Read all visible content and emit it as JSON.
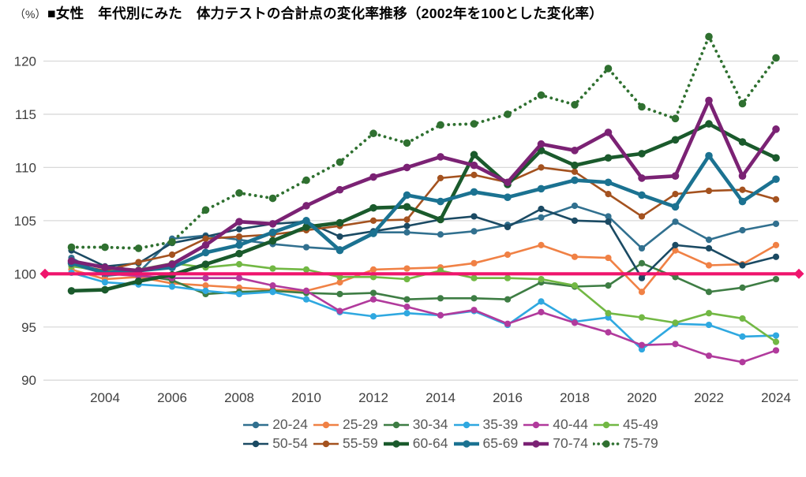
{
  "header": {
    "unit_label": "（%）",
    "title": "■女性　年代別にみた　体力テストの合計点の変化率推移（2002年を100とした変化率）"
  },
  "chart_data": {
    "type": "line",
    "title": "女性 年代別にみた 体力テストの合計点の変化率推移（2002年を100とした変化率）",
    "x_years": [
      2003,
      2004,
      2005,
      2006,
      2007,
      2008,
      2009,
      2010,
      2011,
      2012,
      2013,
      2014,
      2015,
      2016,
      2017,
      2018,
      2019,
      2020,
      2021,
      2022,
      2023,
      2024
    ],
    "x_tick_labels": [
      "2004",
      "2006",
      "2008",
      "2010",
      "2012",
      "2014",
      "2016",
      "2018",
      "2020",
      "2022",
      "2024"
    ],
    "y_ticks": [
      90,
      95,
      100,
      105,
      110,
      115,
      120
    ],
    "ylim": [
      88.8,
      122.8
    ],
    "grid": true,
    "legend_position": "bottom",
    "baseline": {
      "value": 100,
      "color": "#ef156d",
      "marker": "diamond"
    },
    "series": [
      {
        "name": "20-24",
        "color": "#31708f",
        "style": "solid",
        "emphasis": false,
        "values": [
          101.5,
          99.8,
          100.1,
          103.3,
          103.6,
          103.2,
          102.8,
          102.5,
          102.3,
          103.9,
          103.9,
          103.7,
          104.0,
          104.6,
          105.3,
          106.4,
          105.4,
          102.4,
          104.9,
          103.2,
          104.1,
          104.7
        ]
      },
      {
        "name": "25-29",
        "color": "#f08145",
        "style": "solid",
        "emphasis": false,
        "values": [
          100.4,
          99.5,
          99.7,
          99.1,
          98.9,
          98.7,
          98.5,
          98.4,
          99.2,
          100.4,
          100.5,
          100.6,
          101.0,
          101.8,
          102.7,
          101.6,
          101.5,
          98.3,
          102.2,
          100.8,
          100.9,
          102.7
        ]
      },
      {
        "name": "30-34",
        "color": "#3e7d44",
        "style": "solid",
        "emphasis": false,
        "values": [
          100.8,
          100.1,
          99.9,
          99.4,
          98.1,
          98.3,
          98.4,
          98.2,
          98.1,
          98.2,
          97.6,
          97.7,
          97.7,
          97.6,
          99.2,
          98.8,
          98.9,
          101.0,
          99.7,
          98.3,
          98.7,
          99.5
        ]
      },
      {
        "name": "35-39",
        "color": "#2fa8e0",
        "style": "solid",
        "emphasis": false,
        "values": [
          100.1,
          99.2,
          99.0,
          98.8,
          98.4,
          98.1,
          98.3,
          97.6,
          96.4,
          96.0,
          96.3,
          96.1,
          96.5,
          95.2,
          97.4,
          95.5,
          95.9,
          92.9,
          95.3,
          95.2,
          94.1,
          94.2
        ]
      },
      {
        "name": "40-44",
        "color": "#b13a9c",
        "style": "solid",
        "emphasis": false,
        "values": [
          100.9,
          100.0,
          99.8,
          99.6,
          99.6,
          99.6,
          98.9,
          98.4,
          96.5,
          97.6,
          96.9,
          96.1,
          96.6,
          95.3,
          96.4,
          95.4,
          94.5,
          93.3,
          93.4,
          92.3,
          91.7,
          92.8
        ]
      },
      {
        "name": "45-49",
        "color": "#72b844",
        "style": "solid",
        "emphasis": false,
        "values": [
          100.7,
          100.3,
          100.4,
          101.0,
          100.6,
          100.9,
          100.5,
          100.4,
          99.7,
          99.7,
          99.5,
          100.3,
          99.6,
          99.6,
          99.5,
          98.9,
          96.3,
          95.9,
          95.4,
          96.3,
          95.8,
          93.6
        ]
      },
      {
        "name": "50-54",
        "color": "#1b4a63",
        "style": "solid",
        "emphasis": false,
        "values": [
          102.2,
          100.7,
          101.0,
          102.9,
          103.5,
          104.2,
          104.7,
          104.9,
          103.5,
          104.0,
          104.5,
          105.1,
          105.4,
          104.4,
          106.1,
          105.0,
          104.9,
          99.6,
          102.7,
          102.4,
          100.8,
          101.6
        ]
      },
      {
        "name": "55-59",
        "color": "#a4521f",
        "style": "solid",
        "emphasis": false,
        "values": [
          100.9,
          100.3,
          101.1,
          101.8,
          103.3,
          103.5,
          103.7,
          104.1,
          104.5,
          105.0,
          105.1,
          109.0,
          109.3,
          108.6,
          110.0,
          109.6,
          107.5,
          105.4,
          107.5,
          107.8,
          107.9,
          107.0
        ]
      },
      {
        "name": "60-64",
        "color": "#1a5a2c",
        "style": "solid",
        "emphasis": true,
        "values": [
          98.4,
          98.5,
          99.3,
          99.9,
          100.9,
          101.9,
          103.1,
          104.4,
          104.8,
          106.2,
          106.3,
          105.1,
          111.2,
          108.4,
          111.6,
          110.2,
          110.9,
          111.3,
          112.6,
          114.1,
          112.4,
          110.9
        ]
      },
      {
        "name": "65-69",
        "color": "#1b7291",
        "style": "solid",
        "emphasis": true,
        "values": [
          101.0,
          100.1,
          100.3,
          100.6,
          102.0,
          102.7,
          103.9,
          105.0,
          102.2,
          103.8,
          107.4,
          106.8,
          107.7,
          107.2,
          108.0,
          108.8,
          108.6,
          107.4,
          106.3,
          111.1,
          106.8,
          108.9
        ]
      },
      {
        "name": "70-74",
        "color": "#7b2274",
        "style": "solid",
        "emphasis": true,
        "values": [
          101.2,
          100.6,
          100.3,
          100.9,
          102.7,
          104.9,
          104.7,
          106.4,
          107.9,
          109.1,
          110.0,
          111.0,
          110.2,
          108.6,
          112.2,
          111.6,
          113.3,
          109.0,
          109.2,
          116.3,
          109.2,
          113.6
        ]
      },
      {
        "name": "75-79",
        "color": "#2f7030",
        "style": "dotted",
        "emphasis": true,
        "values": [
          102.5,
          102.5,
          102.4,
          103.0,
          106.0,
          107.6,
          107.1,
          108.8,
          110.5,
          113.2,
          112.3,
          114.0,
          114.1,
          115.0,
          116.8,
          115.9,
          119.3,
          115.7,
          114.6,
          122.3,
          116.0,
          120.3
        ]
      }
    ]
  }
}
